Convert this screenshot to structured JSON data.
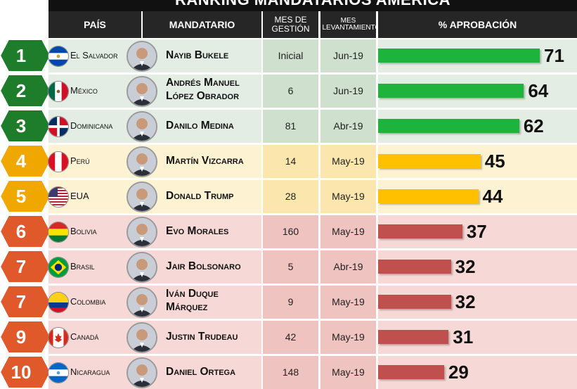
{
  "title": "RANKING MANDATARIOS AMÉRICA",
  "headers": {
    "pais": "PAÍS",
    "mandatario": "MANDATARIO",
    "mes_gestion": "MES DE GESTIÓN",
    "mes_levantamiento": "MES LEVANTAMIENTO",
    "aprobacion": "% APROBACIÓN"
  },
  "colors": {
    "green": "#1db33c",
    "yellow": "#ffc000",
    "red": "#c0504d",
    "header_bg": "#262626",
    "badge_green": "#1e7d2a",
    "badge_yellow": "#f0a800",
    "badge_red": "#e0592a"
  },
  "chart_data": {
    "type": "bar",
    "title": "RANKING MANDATARIOS AMÉRICA",
    "orientation": "horizontal",
    "xlim": [
      0,
      100
    ],
    "rows": [
      {
        "rank": "1",
        "country": "El Salvador",
        "leader": [
          "Nayib Bukele"
        ],
        "mes_gestion": "Inicial",
        "levantamiento": "Jun-19",
        "value": 71,
        "tier": "green",
        "flag": "el-salvador-flag"
      },
      {
        "rank": "2",
        "country": "México",
        "leader": [
          "Andrés Manuel",
          "López Obrador"
        ],
        "mes_gestion": "6",
        "levantamiento": "Jun-19",
        "value": 64,
        "tier": "green",
        "flag": "mexico-flag"
      },
      {
        "rank": "3",
        "country": "Dominicana",
        "leader": [
          "Danilo Medina"
        ],
        "mes_gestion": "81",
        "levantamiento": "Abr-19",
        "value": 62,
        "tier": "green",
        "flag": "dominican-flag"
      },
      {
        "rank": "4",
        "country": "Perú",
        "leader": [
          "Martín Vizcarra"
        ],
        "mes_gestion": "14",
        "levantamiento": "May-19",
        "value": 45,
        "tier": "yellow",
        "flag": "peru-flag"
      },
      {
        "rank": "5",
        "country": "EUA",
        "leader": [
          "Donald Trump"
        ],
        "mes_gestion": "28",
        "levantamiento": "May-19",
        "value": 44,
        "tier": "yellow",
        "flag": "usa-flag"
      },
      {
        "rank": "6",
        "country": "Bolivia",
        "leader": [
          "Evo Morales"
        ],
        "mes_gestion": "160",
        "levantamiento": "May-19",
        "value": 37,
        "tier": "red",
        "flag": "bolivia-flag"
      },
      {
        "rank": "7",
        "country": "Brasil",
        "leader": [
          "Jair Bolsonaro"
        ],
        "mes_gestion": "5",
        "levantamiento": "Abr-19",
        "value": 32,
        "tier": "red",
        "flag": "brazil-flag"
      },
      {
        "rank": "7",
        "country": "Colombia",
        "leader": [
          "Iván Duque",
          "Márquez"
        ],
        "mes_gestion": "9",
        "levantamiento": "May-19",
        "value": 32,
        "tier": "red",
        "flag": "colombia-flag"
      },
      {
        "rank": "9",
        "country": "Canadá",
        "leader": [
          "Justin Trudeau"
        ],
        "mes_gestion": "42",
        "levantamiento": "May-19",
        "value": 31,
        "tier": "red",
        "flag": "canada-flag"
      },
      {
        "rank": "10",
        "country": "Nicaragua",
        "leader": [
          "Daniel Ortega"
        ],
        "mes_gestion": "148",
        "levantamiento": "May-19",
        "value": 29,
        "tier": "red",
        "flag": "nicaragua-flag"
      }
    ]
  }
}
